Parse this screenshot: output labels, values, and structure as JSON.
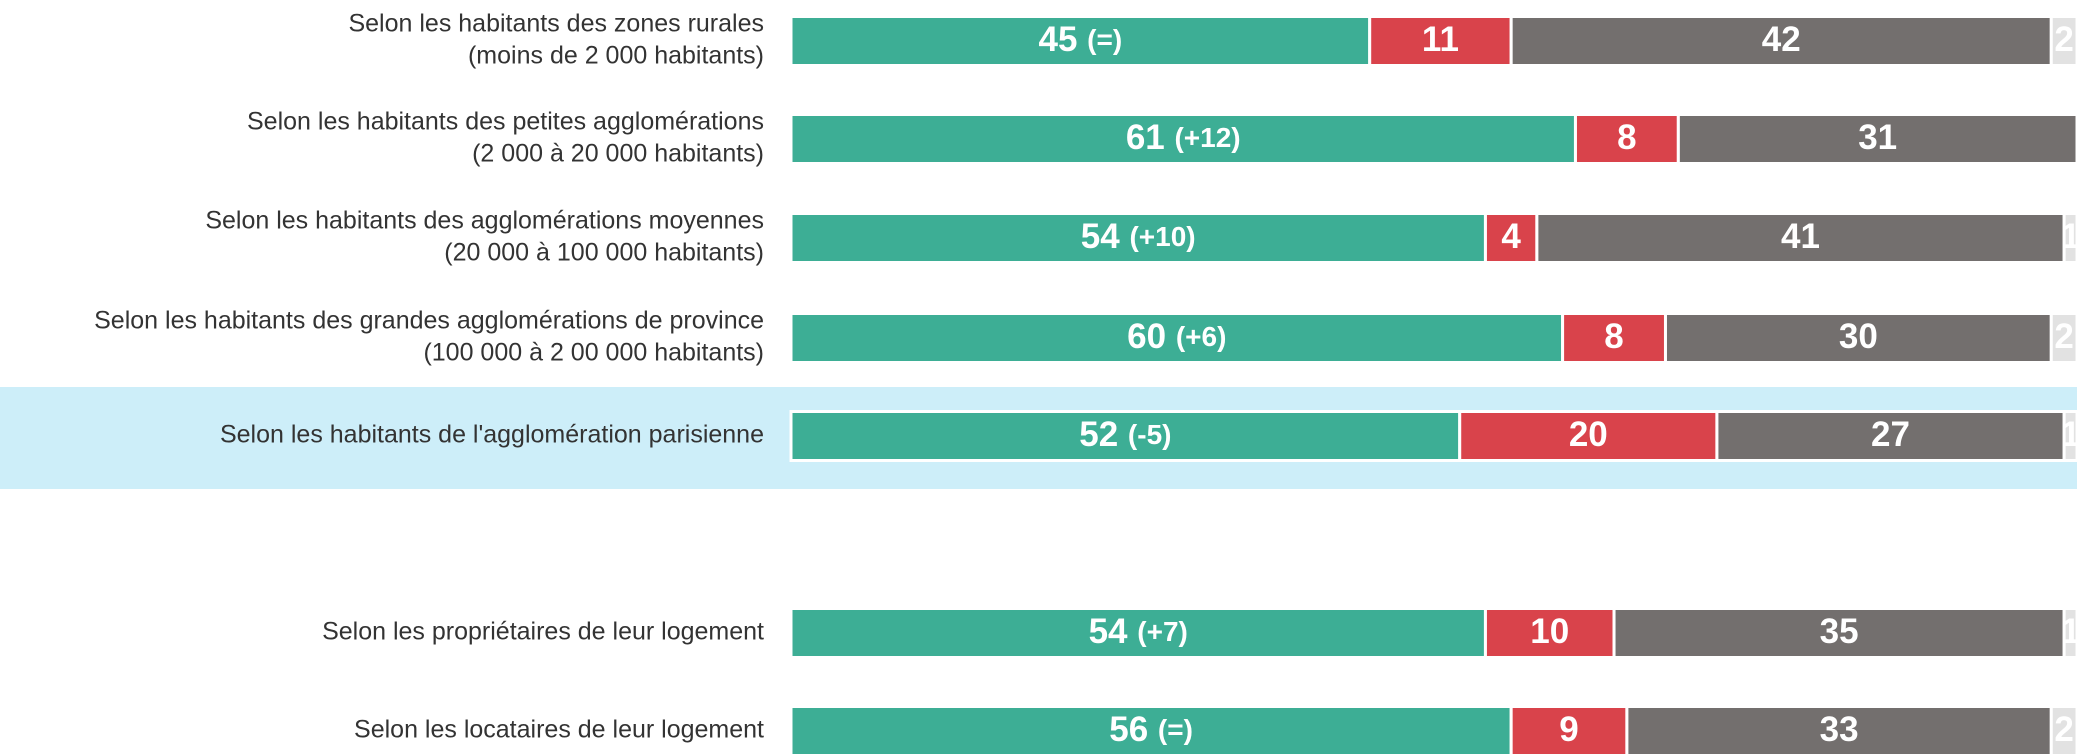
{
  "chart_data": {
    "type": "stacked-bar-horizontal",
    "categories": [
      [
        "Selon les habitants des zones rurales",
        "(moins de 2 000 habitants)"
      ],
      [
        "Selon les habitants des petites agglomérations",
        "(2 000 à 20 000 habitants)"
      ],
      [
        "Selon les habitants des agglomérations moyennes",
        "(20 000 à 100 000 habitants)"
      ],
      [
        "Selon les habitants des grandes agglomérations de province",
        "(100 000 à 2 00 000 habitants)"
      ],
      [
        "Selon les habitants de l'agglomération parisienne"
      ],
      [
        "Selon les propriétaires de leur logement"
      ],
      [
        "Selon les locataires de leur logement"
      ]
    ],
    "xlim": [
      0,
      100
    ],
    "series": [
      {
        "color": "#3dae95",
        "values": [
          45,
          61,
          54,
          60,
          52,
          54,
          56
        ],
        "changes": [
          "(=)",
          "(+12)",
          "(+10)",
          "(+6)",
          "(-5)",
          "(+7)",
          "(=)"
        ]
      },
      {
        "color": "#d9434b",
        "values": [
          11,
          8,
          4,
          8,
          20,
          10,
          9
        ]
      },
      {
        "color": "#736f6e",
        "values": [
          42,
          31,
          41,
          30,
          27,
          35,
          33
        ]
      },
      {
        "color": "#e2e2e2",
        "values": [
          2,
          null,
          1,
          2,
          1,
          1,
          2
        ]
      }
    ]
  }
}
